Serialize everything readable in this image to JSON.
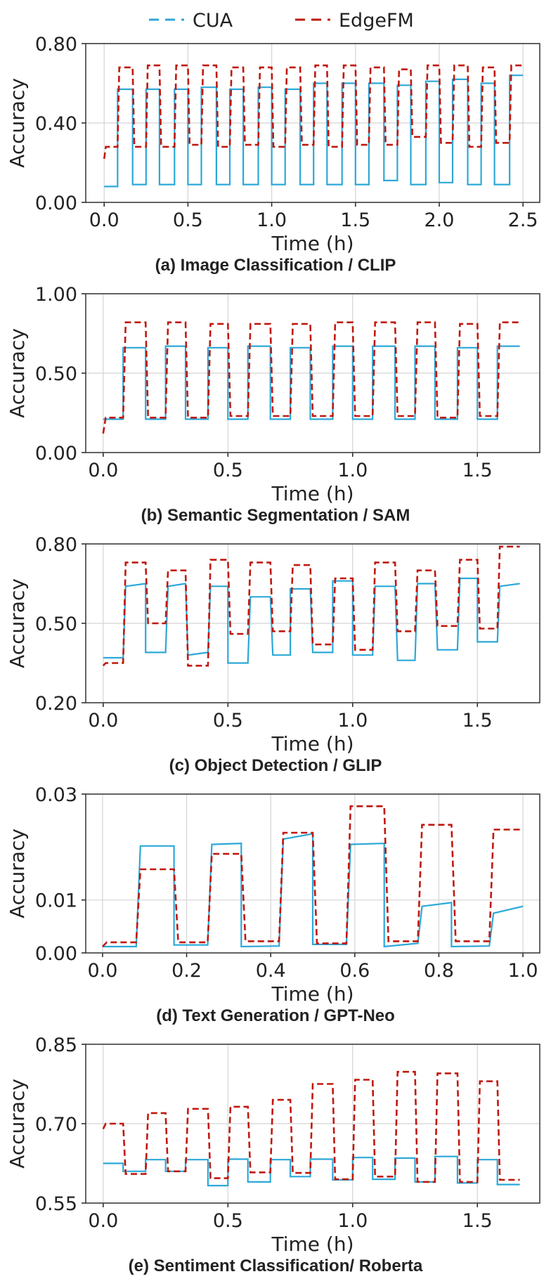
{
  "legend": {
    "items": [
      {
        "label": "CUA",
        "color": "#2ca8d8",
        "dash": "dashed"
      },
      {
        "label": "EdgeFM",
        "color": "#c0180e",
        "dash": "dashed"
      }
    ]
  },
  "chart_data": [
    {
      "type": "line",
      "caption": "(a) Image Classification / CLIP",
      "xlabel": "Time (h)",
      "ylabel": "Accuracy",
      "xlim": [
        -0.11,
        2.6
      ],
      "ylim": [
        0.0,
        0.8
      ],
      "xticks": [
        "0.0",
        "0.5",
        "1.0",
        "1.5",
        "2.0",
        "2.5"
      ],
      "yticks": [
        "0.00",
        "0.40",
        "0.80"
      ],
      "grid": true,
      "series": [
        {
          "name": "CUA",
          "color": "#2ca8d8",
          "x": [
            0.0,
            0.08,
            0.08,
            0.17,
            0.17,
            0.25,
            0.25,
            0.33,
            0.33,
            0.42,
            0.42,
            0.5,
            0.5,
            0.58,
            0.58,
            0.67,
            0.67,
            0.75,
            0.75,
            0.83,
            0.83,
            0.92,
            0.92,
            1.0,
            1.0,
            1.08,
            1.08,
            1.17,
            1.17,
            1.25,
            1.25,
            1.33,
            1.33,
            1.42,
            1.42,
            1.5,
            1.5,
            1.58,
            1.58,
            1.67,
            1.67,
            1.75,
            1.75,
            1.83,
            1.83,
            1.92,
            1.92,
            2.0,
            2.0,
            2.08,
            2.08,
            2.17,
            2.17,
            2.25,
            2.25,
            2.33,
            2.33,
            2.42,
            2.42,
            2.5
          ],
          "y": [
            0.08,
            0.08,
            0.57,
            0.57,
            0.09,
            0.09,
            0.57,
            0.57,
            0.09,
            0.09,
            0.57,
            0.57,
            0.09,
            0.09,
            0.58,
            0.58,
            0.09,
            0.09,
            0.57,
            0.57,
            0.09,
            0.09,
            0.58,
            0.58,
            0.09,
            0.09,
            0.57,
            0.57,
            0.09,
            0.09,
            0.6,
            0.6,
            0.09,
            0.09,
            0.6,
            0.6,
            0.09,
            0.09,
            0.6,
            0.6,
            0.11,
            0.11,
            0.59,
            0.59,
            0.09,
            0.09,
            0.61,
            0.61,
            0.1,
            0.1,
            0.62,
            0.62,
            0.09,
            0.09,
            0.6,
            0.6,
            0.09,
            0.09,
            0.64,
            0.64
          ]
        },
        {
          "name": "EdgeFM",
          "color": "#c0180e",
          "x": [
            0.0,
            0.01,
            0.08,
            0.09,
            0.17,
            0.18,
            0.25,
            0.26,
            0.33,
            0.34,
            0.42,
            0.43,
            0.5,
            0.51,
            0.58,
            0.59,
            0.67,
            0.68,
            0.75,
            0.76,
            0.83,
            0.84,
            0.92,
            0.93,
            1.0,
            1.01,
            1.08,
            1.09,
            1.17,
            1.18,
            1.25,
            1.26,
            1.33,
            1.34,
            1.42,
            1.43,
            1.5,
            1.51,
            1.58,
            1.59,
            1.67,
            1.68,
            1.75,
            1.76,
            1.83,
            1.84,
            1.92,
            1.93,
            2.0,
            2.01,
            2.08,
            2.09,
            2.17,
            2.18,
            2.25,
            2.26,
            2.33,
            2.34,
            2.42,
            2.43,
            2.5
          ],
          "y": [
            0.22,
            0.28,
            0.28,
            0.68,
            0.68,
            0.28,
            0.28,
            0.69,
            0.69,
            0.28,
            0.28,
            0.69,
            0.69,
            0.29,
            0.29,
            0.69,
            0.69,
            0.28,
            0.28,
            0.68,
            0.68,
            0.29,
            0.29,
            0.68,
            0.68,
            0.28,
            0.28,
            0.68,
            0.68,
            0.29,
            0.29,
            0.69,
            0.69,
            0.28,
            0.28,
            0.69,
            0.69,
            0.29,
            0.29,
            0.68,
            0.68,
            0.29,
            0.29,
            0.67,
            0.67,
            0.33,
            0.33,
            0.69,
            0.69,
            0.3,
            0.3,
            0.69,
            0.69,
            0.28,
            0.28,
            0.68,
            0.68,
            0.3,
            0.3,
            0.69,
            0.69
          ]
        }
      ]
    },
    {
      "type": "line",
      "caption": "(b) Semantic Segmentation / SAM",
      "xlabel": "Time (h)",
      "ylabel": "Accuracy",
      "xlim": [
        -0.07,
        1.75
      ],
      "ylim": [
        0.0,
        1.0
      ],
      "xticks": [
        "0.0",
        "0.5",
        "1.0",
        "1.5"
      ],
      "yticks": [
        "0.00",
        "0.50",
        "1.00"
      ],
      "grid": true,
      "series": [
        {
          "name": "CUA",
          "color": "#2ca8d8",
          "x": [
            0.0,
            0.08,
            0.08,
            0.17,
            0.17,
            0.25,
            0.25,
            0.33,
            0.33,
            0.42,
            0.42,
            0.5,
            0.5,
            0.58,
            0.58,
            0.67,
            0.67,
            0.75,
            0.75,
            0.83,
            0.83,
            0.92,
            0.92,
            1.0,
            1.0,
            1.08,
            1.08,
            1.17,
            1.17,
            1.25,
            1.25,
            1.33,
            1.33,
            1.42,
            1.42,
            1.5,
            1.5,
            1.58,
            1.58,
            1.67
          ],
          "y": [
            0.21,
            0.21,
            0.66,
            0.66,
            0.21,
            0.21,
            0.67,
            0.67,
            0.21,
            0.21,
            0.66,
            0.66,
            0.21,
            0.21,
            0.67,
            0.67,
            0.21,
            0.21,
            0.66,
            0.66,
            0.21,
            0.21,
            0.67,
            0.67,
            0.21,
            0.21,
            0.67,
            0.67,
            0.21,
            0.21,
            0.67,
            0.67,
            0.21,
            0.21,
            0.66,
            0.66,
            0.21,
            0.21,
            0.67,
            0.67
          ]
        },
        {
          "name": "EdgeFM",
          "color": "#c0180e",
          "x": [
            0.0,
            0.01,
            0.08,
            0.09,
            0.17,
            0.18,
            0.25,
            0.26,
            0.33,
            0.34,
            0.42,
            0.43,
            0.5,
            0.51,
            0.58,
            0.59,
            0.67,
            0.68,
            0.75,
            0.76,
            0.83,
            0.84,
            0.92,
            0.93,
            1.0,
            1.01,
            1.08,
            1.09,
            1.17,
            1.18,
            1.25,
            1.26,
            1.33,
            1.34,
            1.42,
            1.43,
            1.5,
            1.51,
            1.58,
            1.59,
            1.67
          ],
          "y": [
            0.12,
            0.22,
            0.22,
            0.82,
            0.82,
            0.22,
            0.22,
            0.82,
            0.82,
            0.22,
            0.22,
            0.81,
            0.81,
            0.23,
            0.23,
            0.81,
            0.81,
            0.23,
            0.23,
            0.81,
            0.81,
            0.23,
            0.23,
            0.82,
            0.82,
            0.23,
            0.23,
            0.82,
            0.82,
            0.23,
            0.23,
            0.82,
            0.82,
            0.22,
            0.22,
            0.81,
            0.81,
            0.23,
            0.23,
            0.82,
            0.82
          ]
        }
      ]
    },
    {
      "type": "line",
      "caption": "(c) Object Detection / GLIP",
      "xlabel": "Time (h)",
      "ylabel": "Accuracy",
      "xlim": [
        -0.07,
        1.75
      ],
      "ylim": [
        0.2,
        0.8
      ],
      "xticks": [
        "0.0",
        "0.5",
        "1.0",
        "1.5"
      ],
      "yticks": [
        "0.20",
        "0.50",
        "0.80"
      ],
      "grid": true,
      "series": [
        {
          "name": "CUA",
          "color": "#2ca8d8",
          "x": [
            0.0,
            0.08,
            0.09,
            0.17,
            0.17,
            0.25,
            0.26,
            0.33,
            0.34,
            0.42,
            0.43,
            0.5,
            0.5,
            0.58,
            0.59,
            0.67,
            0.68,
            0.75,
            0.75,
            0.83,
            0.84,
            0.92,
            0.92,
            1.0,
            1.0,
            1.08,
            1.09,
            1.17,
            1.18,
            1.25,
            1.26,
            1.33,
            1.34,
            1.42,
            1.43,
            1.5,
            1.5,
            1.58,
            1.59,
            1.67
          ],
          "y": [
            0.37,
            0.37,
            0.64,
            0.65,
            0.39,
            0.39,
            0.64,
            0.65,
            0.38,
            0.39,
            0.64,
            0.64,
            0.35,
            0.35,
            0.6,
            0.6,
            0.38,
            0.38,
            0.63,
            0.63,
            0.39,
            0.39,
            0.66,
            0.66,
            0.38,
            0.38,
            0.64,
            0.64,
            0.36,
            0.36,
            0.65,
            0.65,
            0.4,
            0.4,
            0.67,
            0.67,
            0.43,
            0.43,
            0.64,
            0.65
          ]
        },
        {
          "name": "EdgeFM",
          "color": "#c0180e",
          "x": [
            0.0,
            0.01,
            0.08,
            0.09,
            0.17,
            0.18,
            0.25,
            0.26,
            0.33,
            0.34,
            0.42,
            0.43,
            0.5,
            0.51,
            0.58,
            0.59,
            0.67,
            0.68,
            0.75,
            0.76,
            0.83,
            0.84,
            0.92,
            0.93,
            1.0,
            1.01,
            1.08,
            1.09,
            1.17,
            1.18,
            1.25,
            1.26,
            1.33,
            1.34,
            1.42,
            1.43,
            1.5,
            1.51,
            1.58,
            1.59,
            1.67
          ],
          "y": [
            0.34,
            0.35,
            0.35,
            0.73,
            0.73,
            0.5,
            0.5,
            0.7,
            0.7,
            0.34,
            0.34,
            0.74,
            0.74,
            0.46,
            0.46,
            0.73,
            0.73,
            0.47,
            0.47,
            0.72,
            0.72,
            0.42,
            0.42,
            0.67,
            0.67,
            0.4,
            0.4,
            0.73,
            0.73,
            0.47,
            0.47,
            0.7,
            0.7,
            0.49,
            0.49,
            0.74,
            0.74,
            0.48,
            0.48,
            0.79,
            0.79
          ]
        }
      ]
    },
    {
      "type": "line",
      "caption": "(d) Text Generation / GPT-Neo",
      "xlabel": "Time (h)",
      "ylabel": "Accuracy",
      "xlim": [
        -0.04,
        1.04
      ],
      "ylim": [
        0.0,
        0.03
      ],
      "xticks": [
        "0.0",
        "0.2",
        "0.4",
        "0.6",
        "0.8",
        "1.0"
      ],
      "yticks": [
        "0.00",
        "0.01",
        "0.03"
      ],
      "grid": true,
      "series": [
        {
          "name": "CUA",
          "color": "#2ca8d8",
          "x": [
            0.0,
            0.08,
            0.09,
            0.17,
            0.17,
            0.25,
            0.26,
            0.33,
            0.33,
            0.42,
            0.43,
            0.5,
            0.5,
            0.58,
            0.59,
            0.67,
            0.67,
            0.75,
            0.76,
            0.83,
            0.83,
            0.92,
            0.93,
            1.0
          ],
          "y": [
            0.0012,
            0.0012,
            0.0202,
            0.0202,
            0.0015,
            0.0015,
            0.0205,
            0.0207,
            0.0012,
            0.0013,
            0.0215,
            0.0225,
            0.0016,
            0.0016,
            0.0205,
            0.0207,
            0.0012,
            0.0018,
            0.0088,
            0.0095,
            0.0012,
            0.0013,
            0.0075,
            0.0088
          ]
        },
        {
          "name": "EdgeFM",
          "color": "#c0180e",
          "x": [
            0.0,
            0.01,
            0.08,
            0.09,
            0.17,
            0.18,
            0.25,
            0.26,
            0.33,
            0.34,
            0.42,
            0.43,
            0.5,
            0.51,
            0.58,
            0.59,
            0.67,
            0.68,
            0.75,
            0.76,
            0.83,
            0.84,
            0.92,
            0.93,
            1.0
          ],
          "y": [
            0.0012,
            0.002,
            0.002,
            0.0158,
            0.0158,
            0.002,
            0.002,
            0.0187,
            0.0187,
            0.0022,
            0.0022,
            0.0227,
            0.0227,
            0.0018,
            0.0018,
            0.0277,
            0.0277,
            0.0022,
            0.0022,
            0.0242,
            0.0242,
            0.0022,
            0.0022,
            0.0233,
            0.0233
          ]
        }
      ]
    },
    {
      "type": "line",
      "caption": "(e) Sentiment Classification/ Roberta",
      "xlabel": "Time (h)",
      "ylabel": "Accuracy",
      "xlim": [
        -0.07,
        1.75
      ],
      "ylim": [
        0.55,
        0.85
      ],
      "xticks": [
        "0.0",
        "0.5",
        "1.0",
        "1.5"
      ],
      "yticks": [
        "0.55",
        "0.70",
        "0.85"
      ],
      "grid": true,
      "series": [
        {
          "name": "CUA",
          "color": "#2ca8d8",
          "x": [
            0.0,
            0.08,
            0.08,
            0.17,
            0.17,
            0.25,
            0.25,
            0.33,
            0.33,
            0.42,
            0.42,
            0.5,
            0.5,
            0.58,
            0.58,
            0.67,
            0.67,
            0.75,
            0.75,
            0.83,
            0.83,
            0.92,
            0.92,
            1.0,
            1.0,
            1.08,
            1.08,
            1.17,
            1.17,
            1.25,
            1.25,
            1.33,
            1.33,
            1.42,
            1.42,
            1.5,
            1.5,
            1.58,
            1.58,
            1.67
          ],
          "y": [
            0.625,
            0.625,
            0.61,
            0.61,
            0.632,
            0.632,
            0.61,
            0.61,
            0.632,
            0.632,
            0.583,
            0.583,
            0.633,
            0.633,
            0.59,
            0.59,
            0.632,
            0.632,
            0.6,
            0.6,
            0.633,
            0.633,
            0.594,
            0.594,
            0.636,
            0.636,
            0.595,
            0.595,
            0.635,
            0.635,
            0.59,
            0.59,
            0.638,
            0.638,
            0.588,
            0.588,
            0.632,
            0.632,
            0.585,
            0.585
          ]
        },
        {
          "name": "EdgeFM",
          "color": "#c0180e",
          "x": [
            0.0,
            0.01,
            0.08,
            0.09,
            0.17,
            0.18,
            0.25,
            0.26,
            0.33,
            0.34,
            0.42,
            0.43,
            0.5,
            0.51,
            0.58,
            0.59,
            0.67,
            0.68,
            0.75,
            0.76,
            0.83,
            0.84,
            0.92,
            0.93,
            1.0,
            1.01,
            1.08,
            1.09,
            1.17,
            1.18,
            1.25,
            1.26,
            1.33,
            1.34,
            1.42,
            1.43,
            1.5,
            1.51,
            1.58,
            1.59,
            1.67
          ],
          "y": [
            0.69,
            0.7,
            0.7,
            0.605,
            0.605,
            0.72,
            0.72,
            0.61,
            0.61,
            0.728,
            0.728,
            0.597,
            0.597,
            0.732,
            0.732,
            0.608,
            0.608,
            0.745,
            0.745,
            0.607,
            0.607,
            0.775,
            0.775,
            0.595,
            0.595,
            0.783,
            0.783,
            0.6,
            0.6,
            0.798,
            0.798,
            0.59,
            0.59,
            0.795,
            0.795,
            0.59,
            0.59,
            0.78,
            0.78,
            0.594,
            0.594
          ]
        }
      ]
    }
  ]
}
